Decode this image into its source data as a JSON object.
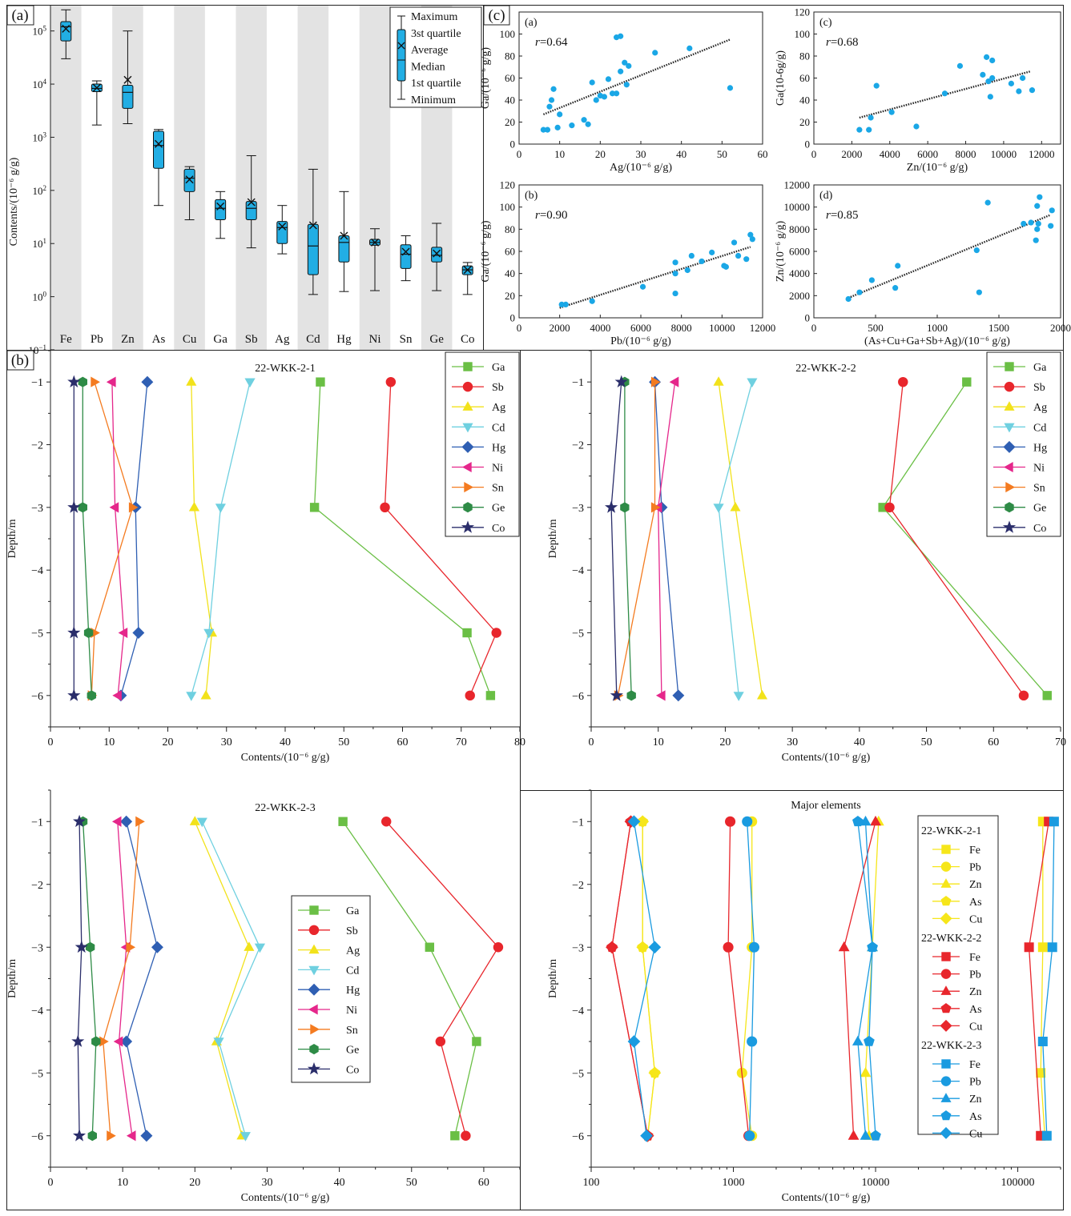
{
  "figure": {
    "panel_a_label": "(a)",
    "panel_b_label": "(b)",
    "panel_c_label": "(c)"
  },
  "colors": {
    "box_fill": "#22aee4",
    "box_stroke": "#111111",
    "band": "#e3e3e3",
    "scatter_point": "#1aa7e6",
    "trend": "#222222",
    "Ga": "#6abf45",
    "Sb": "#e8262c",
    "Ag": "#f2e21b",
    "Cd": "#6fd0e0",
    "Hg": "#2f5fb3",
    "Ni": "#e5278b",
    "Sn": "#f47b20",
    "Ge": "#2e8b46",
    "Co": "#2b2e6b",
    "wkk1": "#f6e61a",
    "wkk2": "#e8262c",
    "wkk3": "#1a9be0"
  },
  "chart_data": [
    {
      "id": "boxplot",
      "type": "box",
      "ylabel": "Contents/(10⁻⁶ g/g)",
      "yscale": "log",
      "ylim": [
        0.1,
        300000
      ],
      "yticks": [
        {
          "v": 0.1,
          "b": "10",
          "e": "−1"
        },
        {
          "v": 1,
          "b": "10",
          "e": "0"
        },
        {
          "v": 10,
          "b": "10",
          "e": "1"
        },
        {
          "v": 100,
          "b": "10",
          "e": "2"
        },
        {
          "v": 1000,
          "b": "10",
          "e": "3"
        },
        {
          "v": 10000,
          "b": "10",
          "e": "4"
        },
        {
          "v": 100000,
          "b": "10",
          "e": "5"
        }
      ],
      "legend": [
        "Maximum",
        "3st quartile",
        "Average",
        "Median",
        "1st quartile",
        "Minimum"
      ],
      "boxes": [
        {
          "el": "Fe",
          "min": 30000,
          "q1": 65000,
          "median": 120000,
          "q3": 150000,
          "max": 250000,
          "mean": 110000
        },
        {
          "el": "Pb",
          "min": 1700,
          "q1": 7200,
          "median": 8300,
          "q3": 10000,
          "max": 11500,
          "mean": 8500
        },
        {
          "el": "Zn",
          "min": 1800,
          "q1": 3500,
          "median": 7000,
          "q3": 9500,
          "max": 100000,
          "mean": 12000
        },
        {
          "el": "As",
          "min": 52,
          "q1": 260,
          "median": 700,
          "q3": 1300,
          "max": 1400,
          "mean": 750
        },
        {
          "el": "Cu",
          "min": 28,
          "q1": 95,
          "median": 170,
          "q3": 250,
          "max": 280,
          "mean": 160
        },
        {
          "el": "Ga",
          "min": 12.5,
          "q1": 28,
          "median": 46,
          "q3": 67,
          "max": 95,
          "mean": 50
        },
        {
          "el": "Sb",
          "min": 8.3,
          "q1": 28,
          "median": 46,
          "q3": 62,
          "max": 450,
          "mean": 60
        },
        {
          "el": "Ag",
          "min": 6.4,
          "q1": 10,
          "median": 20,
          "q3": 26,
          "max": 52,
          "mean": 21
        },
        {
          "el": "Cd",
          "min": 1.1,
          "q1": 2.6,
          "median": 9,
          "q3": 23,
          "max": 250,
          "mean": 22
        },
        {
          "el": "Hg",
          "min": 1.25,
          "q1": 4.5,
          "median": 10.5,
          "q3": 14,
          "max": 95,
          "mean": 14
        },
        {
          "el": "Ni",
          "min": 1.3,
          "q1": 9.3,
          "median": 10.5,
          "q3": 12,
          "max": 19,
          "mean": 10.5
        },
        {
          "el": "Sn",
          "min": 2,
          "q1": 3.4,
          "median": 6.3,
          "q3": 9.5,
          "max": 14,
          "mean": 7
        },
        {
          "el": "Ge",
          "min": 1.3,
          "q1": 4.5,
          "median": 6,
          "q3": 8.5,
          "max": 24,
          "mean": 6.5
        },
        {
          "el": "Co",
          "min": 1.1,
          "q1": 2.6,
          "median": 3.2,
          "q3": 3.8,
          "max": 4.4,
          "mean": 3.2
        }
      ]
    },
    {
      "id": "scatter_a",
      "type": "scatter",
      "panel": "(a)",
      "r_label": "r",
      "r_value": "=0.64",
      "xlabel": "Ag/(10⁻⁶ g/g)",
      "ylabel": "Ga/(10⁻⁶ g/g)",
      "xlim": [
        0,
        60
      ],
      "ylim": [
        0,
        120
      ],
      "xticks": [
        0,
        10,
        20,
        30,
        40,
        50,
        60
      ],
      "yticks": [
        0,
        20,
        40,
        60,
        80,
        100
      ],
      "trend": [
        [
          6,
          27
        ],
        [
          52,
          95
        ]
      ],
      "points": [
        [
          6,
          13
        ],
        [
          7,
          13
        ],
        [
          7.5,
          34
        ],
        [
          8,
          40
        ],
        [
          8.5,
          50
        ],
        [
          9.5,
          15
        ],
        [
          10,
          27
        ],
        [
          13,
          17
        ],
        [
          16,
          22
        ],
        [
          17,
          18
        ],
        [
          18,
          56
        ],
        [
          19,
          40
        ],
        [
          20,
          44
        ],
        [
          21,
          43
        ],
        [
          22,
          59
        ],
        [
          23,
          46
        ],
        [
          24,
          46
        ],
        [
          25,
          66
        ],
        [
          24,
          97
        ],
        [
          25,
          98
        ],
        [
          26,
          74
        ],
        [
          26.5,
          54
        ],
        [
          27,
          71
        ],
        [
          33.5,
          83
        ],
        [
          42,
          87
        ],
        [
          52,
          51
        ]
      ]
    },
    {
      "id": "scatter_c",
      "type": "scatter",
      "panel": "(c)",
      "r_label": "r",
      "r_value": "=0.68",
      "xlabel": "Zn/(10⁻⁶ g/g)",
      "ylabel": "Ga(10-6g/g)",
      "xlim": [
        0,
        13000
      ],
      "ylim": [
        0,
        120
      ],
      "xticks": [
        0,
        2000,
        4000,
        6000,
        8000,
        10000,
        12000
      ],
      "yticks": [
        0,
        20,
        40,
        60,
        80,
        100,
        120
      ],
      "trend": [
        [
          2400,
          24
        ],
        [
          11400,
          66
        ]
      ],
      "points": [
        [
          2400,
          13
        ],
        [
          2900,
          13
        ],
        [
          3000,
          24
        ],
        [
          3300,
          53
        ],
        [
          4100,
          29
        ],
        [
          5400,
          16
        ],
        [
          6900,
          46
        ],
        [
          7700,
          71
        ],
        [
          8900,
          63
        ],
        [
          9100,
          79
        ],
        [
          9200,
          57
        ],
        [
          9300,
          43
        ],
        [
          9400,
          76
        ],
        [
          9400,
          60
        ],
        [
          10400,
          55
        ],
        [
          10800,
          48
        ],
        [
          11000,
          60
        ],
        [
          11500,
          49
        ]
      ]
    },
    {
      "id": "scatter_b",
      "type": "scatter",
      "panel": "(b)",
      "r_label": "r",
      "r_value": "=0.90",
      "xlabel": "Pb/(10⁻⁶ g/g)",
      "ylabel": "Ga/(10⁻⁶ g/g)",
      "xlim": [
        0,
        12000
      ],
      "ylim": [
        0,
        120
      ],
      "xticks": [
        0,
        2000,
        4000,
        6000,
        8000,
        10000,
        12000
      ],
      "yticks": [
        0,
        20,
        40,
        60,
        80,
        100,
        120
      ],
      "trend": [
        [
          2000,
          9
        ],
        [
          11400,
          64
        ]
      ],
      "points": [
        [
          2100,
          12
        ],
        [
          2300,
          12
        ],
        [
          3600,
          15
        ],
        [
          6100,
          28
        ],
        [
          7700,
          22
        ],
        [
          7700,
          40
        ],
        [
          7700,
          50
        ],
        [
          8300,
          43
        ],
        [
          8500,
          56
        ],
        [
          9000,
          51
        ],
        [
          9500,
          59
        ],
        [
          10100,
          47
        ],
        [
          10200,
          46
        ],
        [
          10600,
          68
        ],
        [
          10800,
          56
        ],
        [
          11200,
          53
        ],
        [
          11400,
          75
        ],
        [
          11500,
          71
        ]
      ]
    },
    {
      "id": "scatter_d",
      "type": "scatter",
      "panel": "(d)",
      "r_label": "r",
      "r_value": "=0.85",
      "xlabel": "(As+Cu+Ga+Sb+Ag)/(10⁻⁶ g/g)",
      "ylabel": "Zn/(10⁻⁶ g/g)",
      "xlim": [
        0,
        2000
      ],
      "ylim": [
        0,
        12000
      ],
      "xticks": [
        0,
        500,
        1000,
        1500,
        2000
      ],
      "yticks": [
        0,
        2000,
        4000,
        6000,
        8000,
        10000,
        12000
      ],
      "trend": [
        [
          280,
          1800
        ],
        [
          1920,
          9300
        ]
      ],
      "points": [
        [
          280,
          1700
        ],
        [
          370,
          2300
        ],
        [
          470,
          3400
        ],
        [
          660,
          2700
        ],
        [
          680,
          4700
        ],
        [
          1320,
          6100
        ],
        [
          1340,
          2300
        ],
        [
          1410,
          10400
        ],
        [
          1700,
          8500
        ],
        [
          1760,
          8600
        ],
        [
          1800,
          7000
        ],
        [
          1810,
          8000
        ],
        [
          1810,
          10100
        ],
        [
          1820,
          8500
        ],
        [
          1830,
          10900
        ],
        [
          1920,
          8300
        ],
        [
          1930,
          9700
        ]
      ]
    },
    {
      "id": "profile_1",
      "type": "line",
      "title": "22-WKK-2-1",
      "xlabel": "Contents/(10⁻⁶ g/g)",
      "ylabel": "Depth/m",
      "xlim": [
        0,
        80
      ],
      "ylim": [
        -6.5,
        -0.5
      ],
      "xticks": [
        0,
        10,
        20,
        30,
        40,
        50,
        60,
        70,
        80
      ],
      "yticks": [
        -1,
        -2,
        -3,
        -4,
        -5,
        -6
      ],
      "depths": [
        -1,
        -3,
        -5,
        -6
      ],
      "series": [
        {
          "name": "Ga",
          "values": [
            46,
            45,
            71,
            75
          ]
        },
        {
          "name": "Sb",
          "values": [
            58,
            57,
            76,
            71.5
          ]
        },
        {
          "name": "Ag",
          "values": [
            24,
            24.5,
            27.5,
            26.5
          ]
        },
        {
          "name": "Cd",
          "values": [
            34,
            29,
            27,
            24
          ]
        },
        {
          "name": "Hg",
          "values": [
            16.5,
            14.5,
            15,
            12
          ]
        },
        {
          "name": "Ni",
          "values": [
            10.5,
            11,
            12.5,
            11.5
          ]
        },
        {
          "name": "Sn",
          "values": [
            7.5,
            14,
            7.5,
            7
          ]
        },
        {
          "name": "Ge",
          "values": [
            5.5,
            5.5,
            6.5,
            7
          ]
        },
        {
          "name": "Co",
          "values": [
            4,
            4,
            4,
            4
          ]
        }
      ]
    },
    {
      "id": "profile_2",
      "type": "line",
      "title": "22-WKK-2-2",
      "xlabel": "Contents/(10⁻⁶ g/g)",
      "ylabel": "Depth/m",
      "xlim": [
        0,
        70
      ],
      "ylim": [
        -6.5,
        -0.5
      ],
      "xticks": [
        0,
        10,
        20,
        30,
        40,
        50,
        60,
        70
      ],
      "yticks": [
        -1,
        -2,
        -3,
        -4,
        -5,
        -6
      ],
      "depths": [
        -1,
        -3,
        -6
      ],
      "series": [
        {
          "name": "Ga",
          "values": [
            56,
            43.5,
            68
          ]
        },
        {
          "name": "Sb",
          "values": [
            46.5,
            44.5,
            64.5
          ]
        },
        {
          "name": "Ag",
          "values": [
            19,
            21.5,
            25.5
          ]
        },
        {
          "name": "Cd",
          "values": [
            24,
            19,
            22
          ]
        },
        {
          "name": "Hg",
          "values": [
            9.5,
            10.5,
            13
          ]
        },
        {
          "name": "Ni",
          "values": [
            12.5,
            10,
            10.5
          ]
        },
        {
          "name": "Sn",
          "values": [
            9.5,
            9.5,
            4
          ]
        },
        {
          "name": "Ge",
          "values": [
            5,
            5,
            6
          ]
        },
        {
          "name": "Co",
          "values": [
            4.5,
            3,
            3.8
          ]
        }
      ]
    },
    {
      "id": "profile_3",
      "type": "line",
      "title": "22-WKK-2-3",
      "xlabel": "Contents/(10⁻⁶ g/g)",
      "ylabel": "Depth/m",
      "xlim": [
        0,
        65
      ],
      "ylim": [
        -6.5,
        -0.5
      ],
      "xticks": [
        0,
        10,
        20,
        30,
        40,
        50,
        60
      ],
      "yticks": [
        -1,
        -2,
        -3,
        -4,
        -5,
        -6
      ],
      "depths": [
        -1,
        -3,
        -4.5,
        -6
      ],
      "series": [
        {
          "name": "Ga",
          "values": [
            40.5,
            52.5,
            59,
            56
          ]
        },
        {
          "name": "Sb",
          "values": [
            46.5,
            62,
            54,
            57.5
          ]
        },
        {
          "name": "Ag",
          "values": [
            20,
            27.5,
            23,
            26.5
          ]
        },
        {
          "name": "Cd",
          "values": [
            21,
            29,
            23.3,
            27
          ]
        },
        {
          "name": "Hg",
          "values": [
            10.5,
            14.8,
            10.5,
            13.3
          ]
        },
        {
          "name": "Ni",
          "values": [
            9.3,
            10.5,
            9.5,
            11.3
          ]
        },
        {
          "name": "Sn",
          "values": [
            12.3,
            11,
            7.3,
            8.3
          ]
        },
        {
          "name": "Ge",
          "values": [
            4.5,
            5.5,
            6.3,
            5.8
          ]
        },
        {
          "name": "Co",
          "values": [
            4,
            4.3,
            3.8,
            4
          ]
        }
      ]
    },
    {
      "id": "major",
      "type": "line",
      "title": "Major elements",
      "xlabel": "Contents/(10⁻⁶ g/g)",
      "ylabel": "Depth/m",
      "xscale": "log",
      "xlim": [
        100,
        200000
      ],
      "ylim": [
        -6.5,
        -0.5
      ],
      "xticks": [
        100,
        1000,
        10000,
        100000
      ],
      "yticks": [
        -1,
        -2,
        -3,
        -4,
        -5,
        -6
      ],
      "groups": [
        {
          "name": "22-WKK-2-1",
          "depths": [
            -1,
            -3,
            -5,
            -6
          ],
          "series": [
            {
              "name": "Fe",
              "values": [
                150000,
                150000,
                145000,
                155000
              ]
            },
            {
              "name": "Pb",
              "values": [
                1350,
                1350,
                1150,
                1350
              ]
            },
            {
              "name": "Zn",
              "values": [
                10500,
                9500,
                8500,
                9000
              ]
            },
            {
              "name": "As",
              "values": [
                230,
                230,
                280,
                250
              ]
            },
            {
              "name": "Cu",
              "values": [
                230,
                230,
                280,
                250
              ]
            }
          ]
        },
        {
          "name": "22-WKK-2-2",
          "depths": [
            -1,
            -3,
            -6
          ],
          "series": [
            {
              "name": "Fe",
              "values": [
                165000,
                120000,
                145000
              ]
            },
            {
              "name": "Pb",
              "values": [
                950,
                920,
                1280
              ]
            },
            {
              "name": "Zn",
              "values": [
                10000,
                6000,
                7000
              ]
            },
            {
              "name": "As",
              "values": [
                190,
                140,
                250
              ]
            },
            {
              "name": "Cu",
              "values": [
                190,
                140,
                250
              ]
            }
          ]
        },
        {
          "name": "22-WKK-2-3",
          "depths": [
            -1,
            -3,
            -4.5,
            -6
          ],
          "series": [
            {
              "name": "Fe",
              "values": [
                180000,
                175000,
                150000,
                160000
              ]
            },
            {
              "name": "Pb",
              "values": [
                1250,
                1400,
                1350,
                1300
              ]
            },
            {
              "name": "Zn",
              "values": [
                8500,
                9500,
                7500,
                8500
              ]
            },
            {
              "name": "As",
              "values": [
                7500,
                9500,
                9000,
                10000
              ]
            },
            {
              "name": "Cu",
              "values": [
                200,
                280,
                200,
                245
              ]
            }
          ]
        }
      ]
    }
  ]
}
